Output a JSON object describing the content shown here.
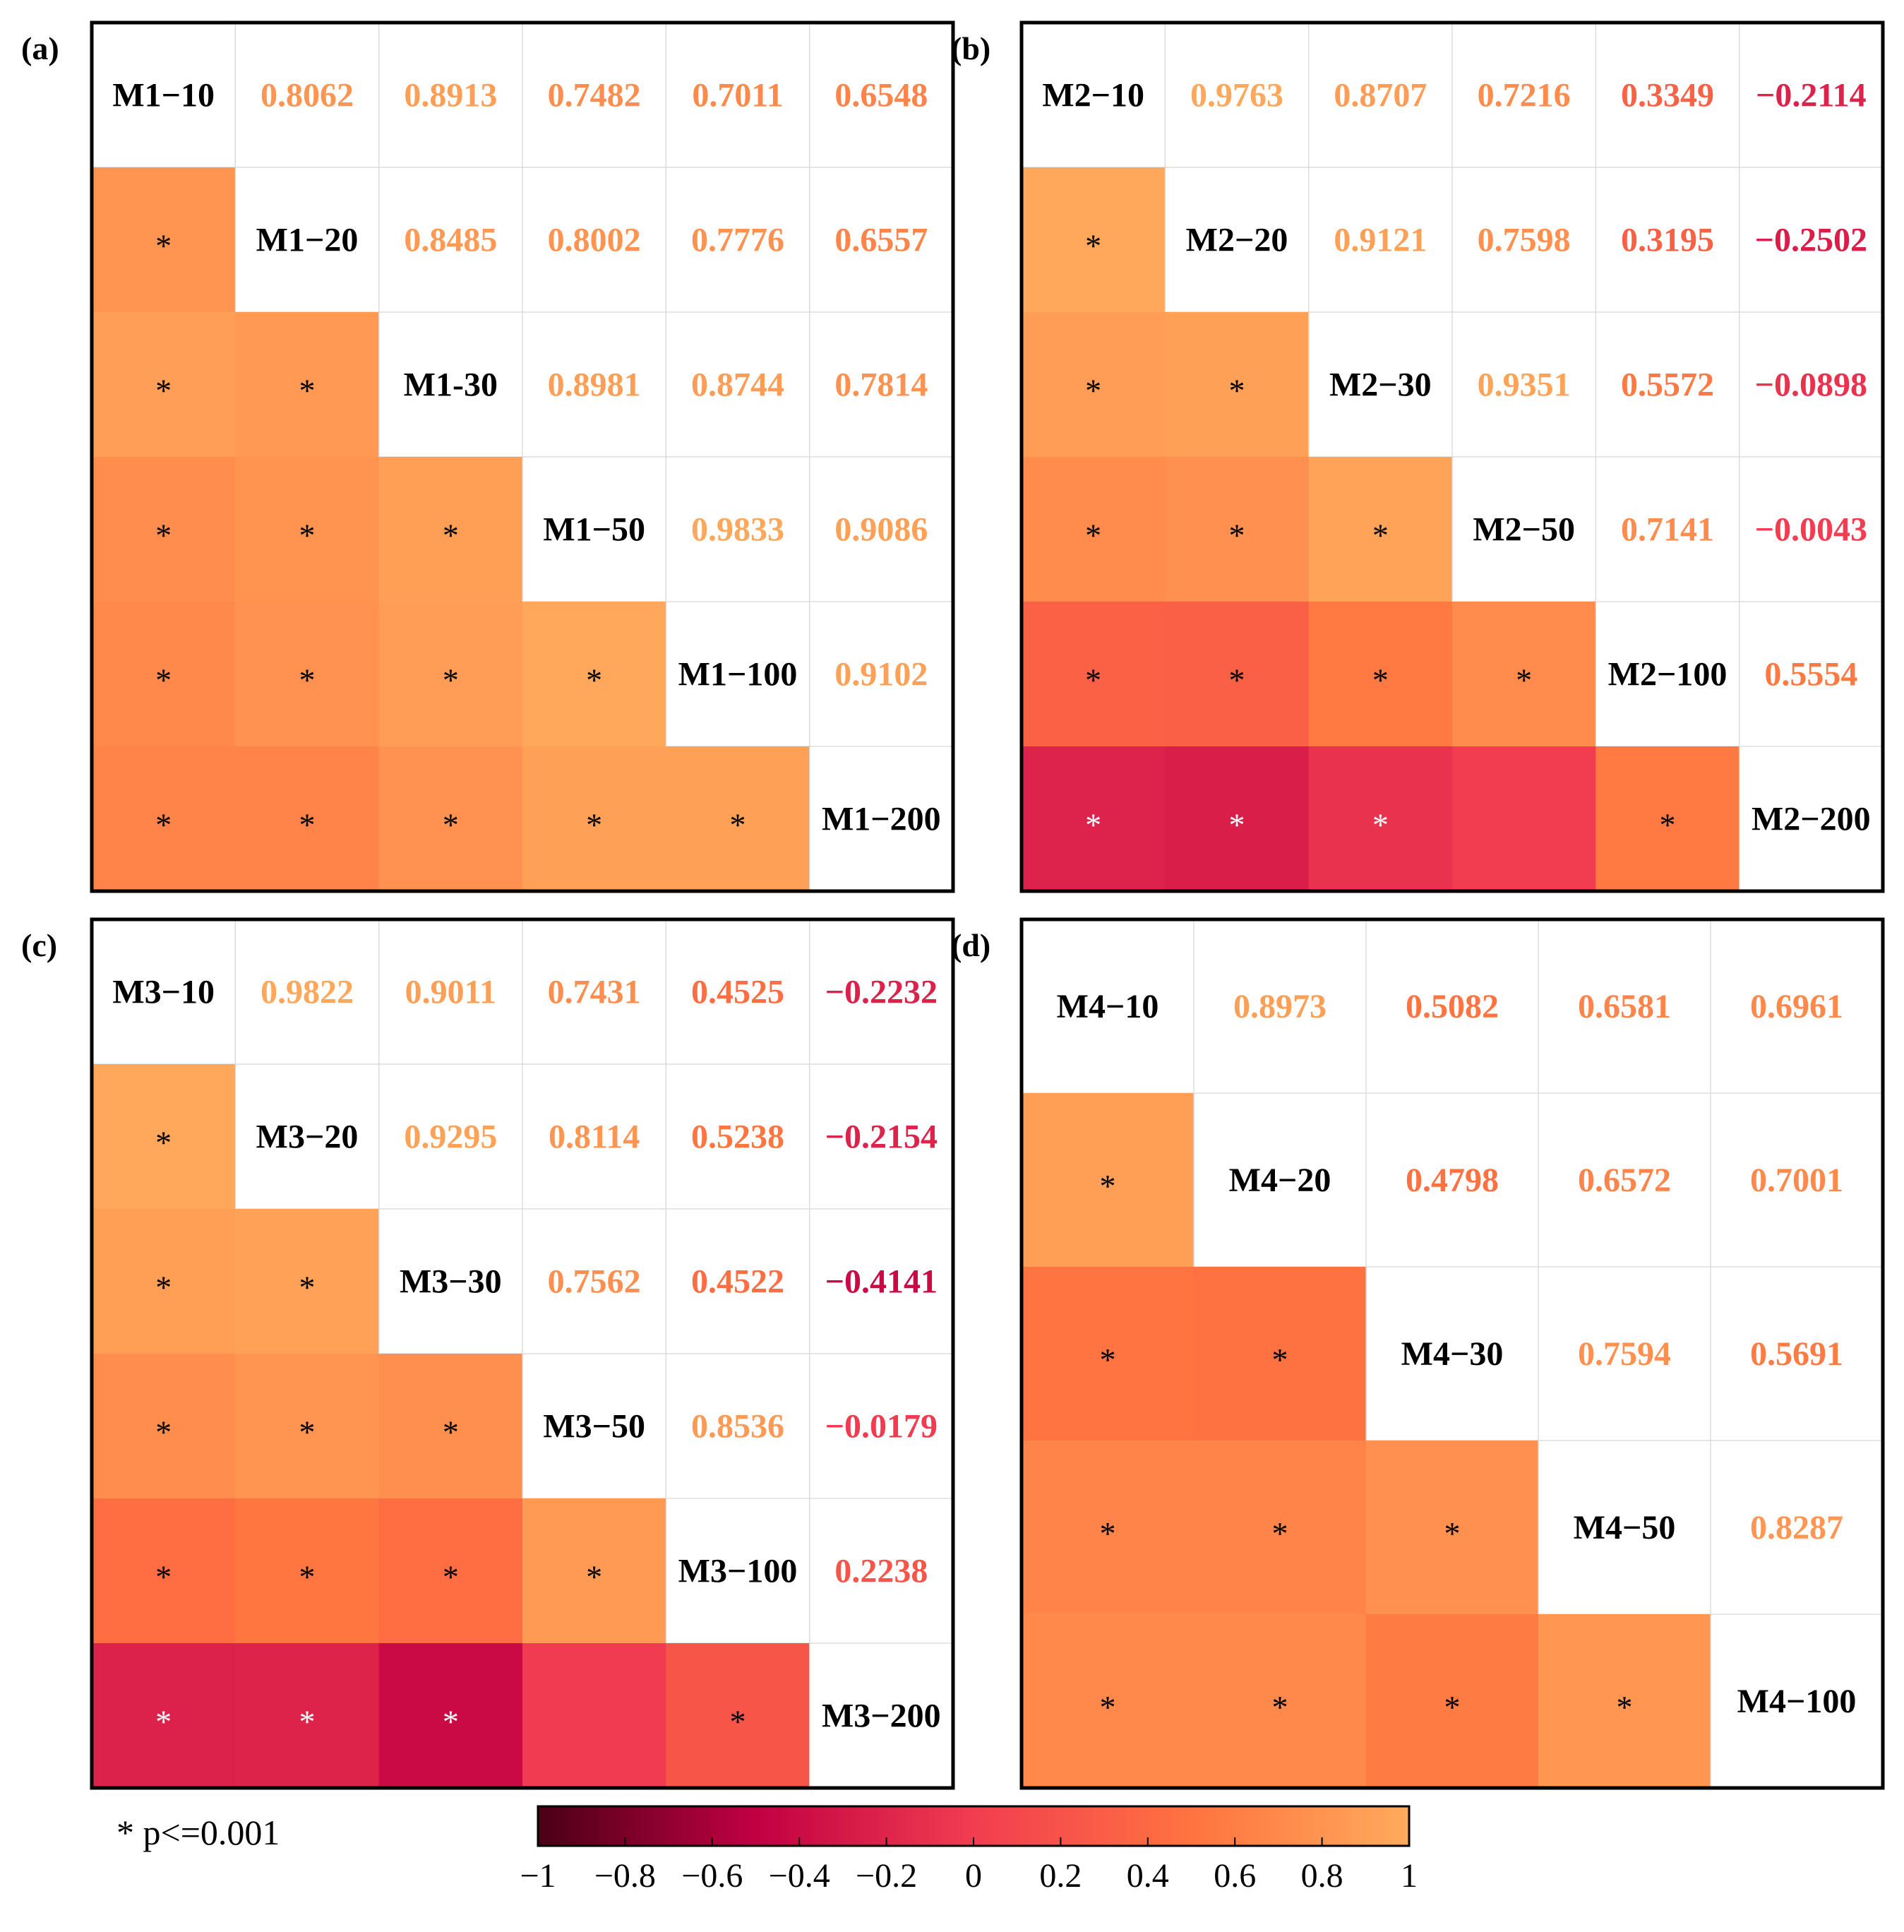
{
  "chart_data": {
    "type": "heatmap",
    "panels": [
      {
        "label": "(a)",
        "variables": [
          "M1−10",
          "M1−20",
          "M1-30",
          "M1−50",
          "M1−100",
          "M1−200"
        ],
        "upper": [
          [
            null,
            0.8062,
            0.8913,
            0.7482,
            0.7011,
            0.6548
          ],
          [
            null,
            null,
            0.8485,
            0.8002,
            0.7776,
            0.6557
          ],
          [
            null,
            null,
            null,
            0.8981,
            0.8744,
            0.7814
          ],
          [
            null,
            null,
            null,
            null,
            0.9833,
            0.9086
          ],
          [
            null,
            null,
            null,
            null,
            null,
            0.9102
          ]
        ],
        "upper_text": [
          [
            null,
            "0.8062",
            "0.8913",
            "0.7482",
            "0.7011",
            "0.6548"
          ],
          [
            null,
            null,
            "0.8485",
            "0.8002",
            "0.7776",
            "0.6557"
          ],
          [
            null,
            null,
            null,
            "0.8981",
            "0.8744",
            "0.7814"
          ],
          [
            null,
            null,
            null,
            null,
            "0.9833",
            "0.9086"
          ],
          [
            null,
            null,
            null,
            null,
            null,
            "0.9102"
          ]
        ],
        "significant": [
          [],
          [
            true
          ],
          [
            true,
            true
          ],
          [
            true,
            true,
            true
          ],
          [
            true,
            true,
            true,
            true
          ],
          [
            true,
            true,
            true,
            true,
            true
          ]
        ],
        "star": "*"
      },
      {
        "label": "(b)",
        "variables": [
          "M2−10",
          "M2−20",
          "M2−30",
          "M2−50",
          "M2−100",
          "M2−200"
        ],
        "upper": [
          [
            null,
            0.9763,
            0.8707,
            0.7216,
            0.3349,
            -0.2114
          ],
          [
            null,
            null,
            0.9121,
            0.7598,
            0.3195,
            -0.2502
          ],
          [
            null,
            null,
            null,
            0.9351,
            0.5572,
            -0.0898
          ],
          [
            null,
            null,
            null,
            null,
            0.7141,
            -0.0043
          ],
          [
            null,
            null,
            null,
            null,
            null,
            0.5554
          ]
        ],
        "upper_text": [
          [
            null,
            "0.9763",
            "0.8707",
            "0.7216",
            "0.3349",
            "−0.2114"
          ],
          [
            null,
            null,
            "0.9121",
            "0.7598",
            "0.3195",
            "−0.2502"
          ],
          [
            null,
            null,
            null,
            "0.9351",
            "0.5572",
            "−0.0898"
          ],
          [
            null,
            null,
            null,
            null,
            "0.7141",
            "−0.0043"
          ],
          [
            null,
            null,
            null,
            null,
            null,
            "0.5554"
          ]
        ],
        "significant": [
          [],
          [
            true
          ],
          [
            true,
            true
          ],
          [
            true,
            true,
            true
          ],
          [
            true,
            true,
            true,
            true
          ],
          [
            true,
            true,
            true,
            false,
            true
          ]
        ],
        "star": "*"
      },
      {
        "label": "(c)",
        "variables": [
          "M3−10",
          "M3−20",
          "M3−30",
          "M3−50",
          "M3−100",
          "M3−200"
        ],
        "upper": [
          [
            null,
            0.9822,
            0.9011,
            0.7431,
            0.4525,
            -0.2232
          ],
          [
            null,
            null,
            0.9295,
            0.8114,
            0.5238,
            -0.2154
          ],
          [
            null,
            null,
            null,
            0.7562,
            0.4522,
            -0.4141
          ],
          [
            null,
            null,
            null,
            null,
            0.8536,
            -0.0179
          ],
          [
            null,
            null,
            null,
            null,
            null,
            0.2238
          ]
        ],
        "upper_text": [
          [
            null,
            "0.9822",
            "0.9011",
            "0.7431",
            "0.4525",
            "−0.2232"
          ],
          [
            null,
            null,
            "0.9295",
            "0.8114",
            "0.5238",
            "−0.2154"
          ],
          [
            null,
            null,
            null,
            "0.7562",
            "0.4522",
            "−0.4141"
          ],
          [
            null,
            null,
            null,
            null,
            "0.8536",
            "−0.0179"
          ],
          [
            null,
            null,
            null,
            null,
            null,
            "0.2238"
          ]
        ],
        "significant": [
          [],
          [
            true
          ],
          [
            true,
            true
          ],
          [
            true,
            true,
            true
          ],
          [
            true,
            true,
            true,
            true
          ],
          [
            true,
            true,
            true,
            false,
            true
          ]
        ],
        "star": "*"
      },
      {
        "label": "(d)",
        "variables": [
          "M4−10",
          "M4−20",
          "M4−30",
          "M4−50",
          "M4−100"
        ],
        "upper": [
          [
            null,
            0.8973,
            0.5082,
            0.6581,
            0.6961
          ],
          [
            null,
            null,
            0.4798,
            0.6572,
            0.7001
          ],
          [
            null,
            null,
            null,
            0.7594,
            0.5691
          ],
          [
            null,
            null,
            null,
            null,
            0.8287
          ]
        ],
        "upper_text": [
          [
            null,
            "0.8973",
            "0.5082",
            "0.6581",
            "0.6961"
          ],
          [
            null,
            null,
            "0.4798",
            "0.6572",
            "0.7001"
          ],
          [
            null,
            null,
            null,
            "0.7594",
            "0.5691"
          ],
          [
            null,
            null,
            null,
            null,
            "0.8287"
          ]
        ],
        "significant": [
          [],
          [
            true
          ],
          [
            true,
            true
          ],
          [
            true,
            true,
            true
          ],
          [
            true,
            true,
            true,
            true
          ]
        ],
        "star": "*"
      }
    ],
    "colorbar": {
      "min": -1,
      "max": 1,
      "ticks": [
        -1,
        -0.8,
        -0.6,
        -0.4,
        -0.2,
        0,
        0.2,
        0.4,
        0.6,
        0.8,
        1
      ],
      "tick_labels": [
        "−1",
        "−0.8",
        "−0.6",
        "−0.4",
        "−0.2",
        "0",
        "0.2",
        "0.4",
        "0.6",
        "0.8",
        "1"
      ],
      "colors": [
        "#4a0016",
        "#c10043",
        "#f23d50",
        "#ff7340",
        "#ffaa5c"
      ]
    },
    "footnote": "* p<=0.001"
  }
}
